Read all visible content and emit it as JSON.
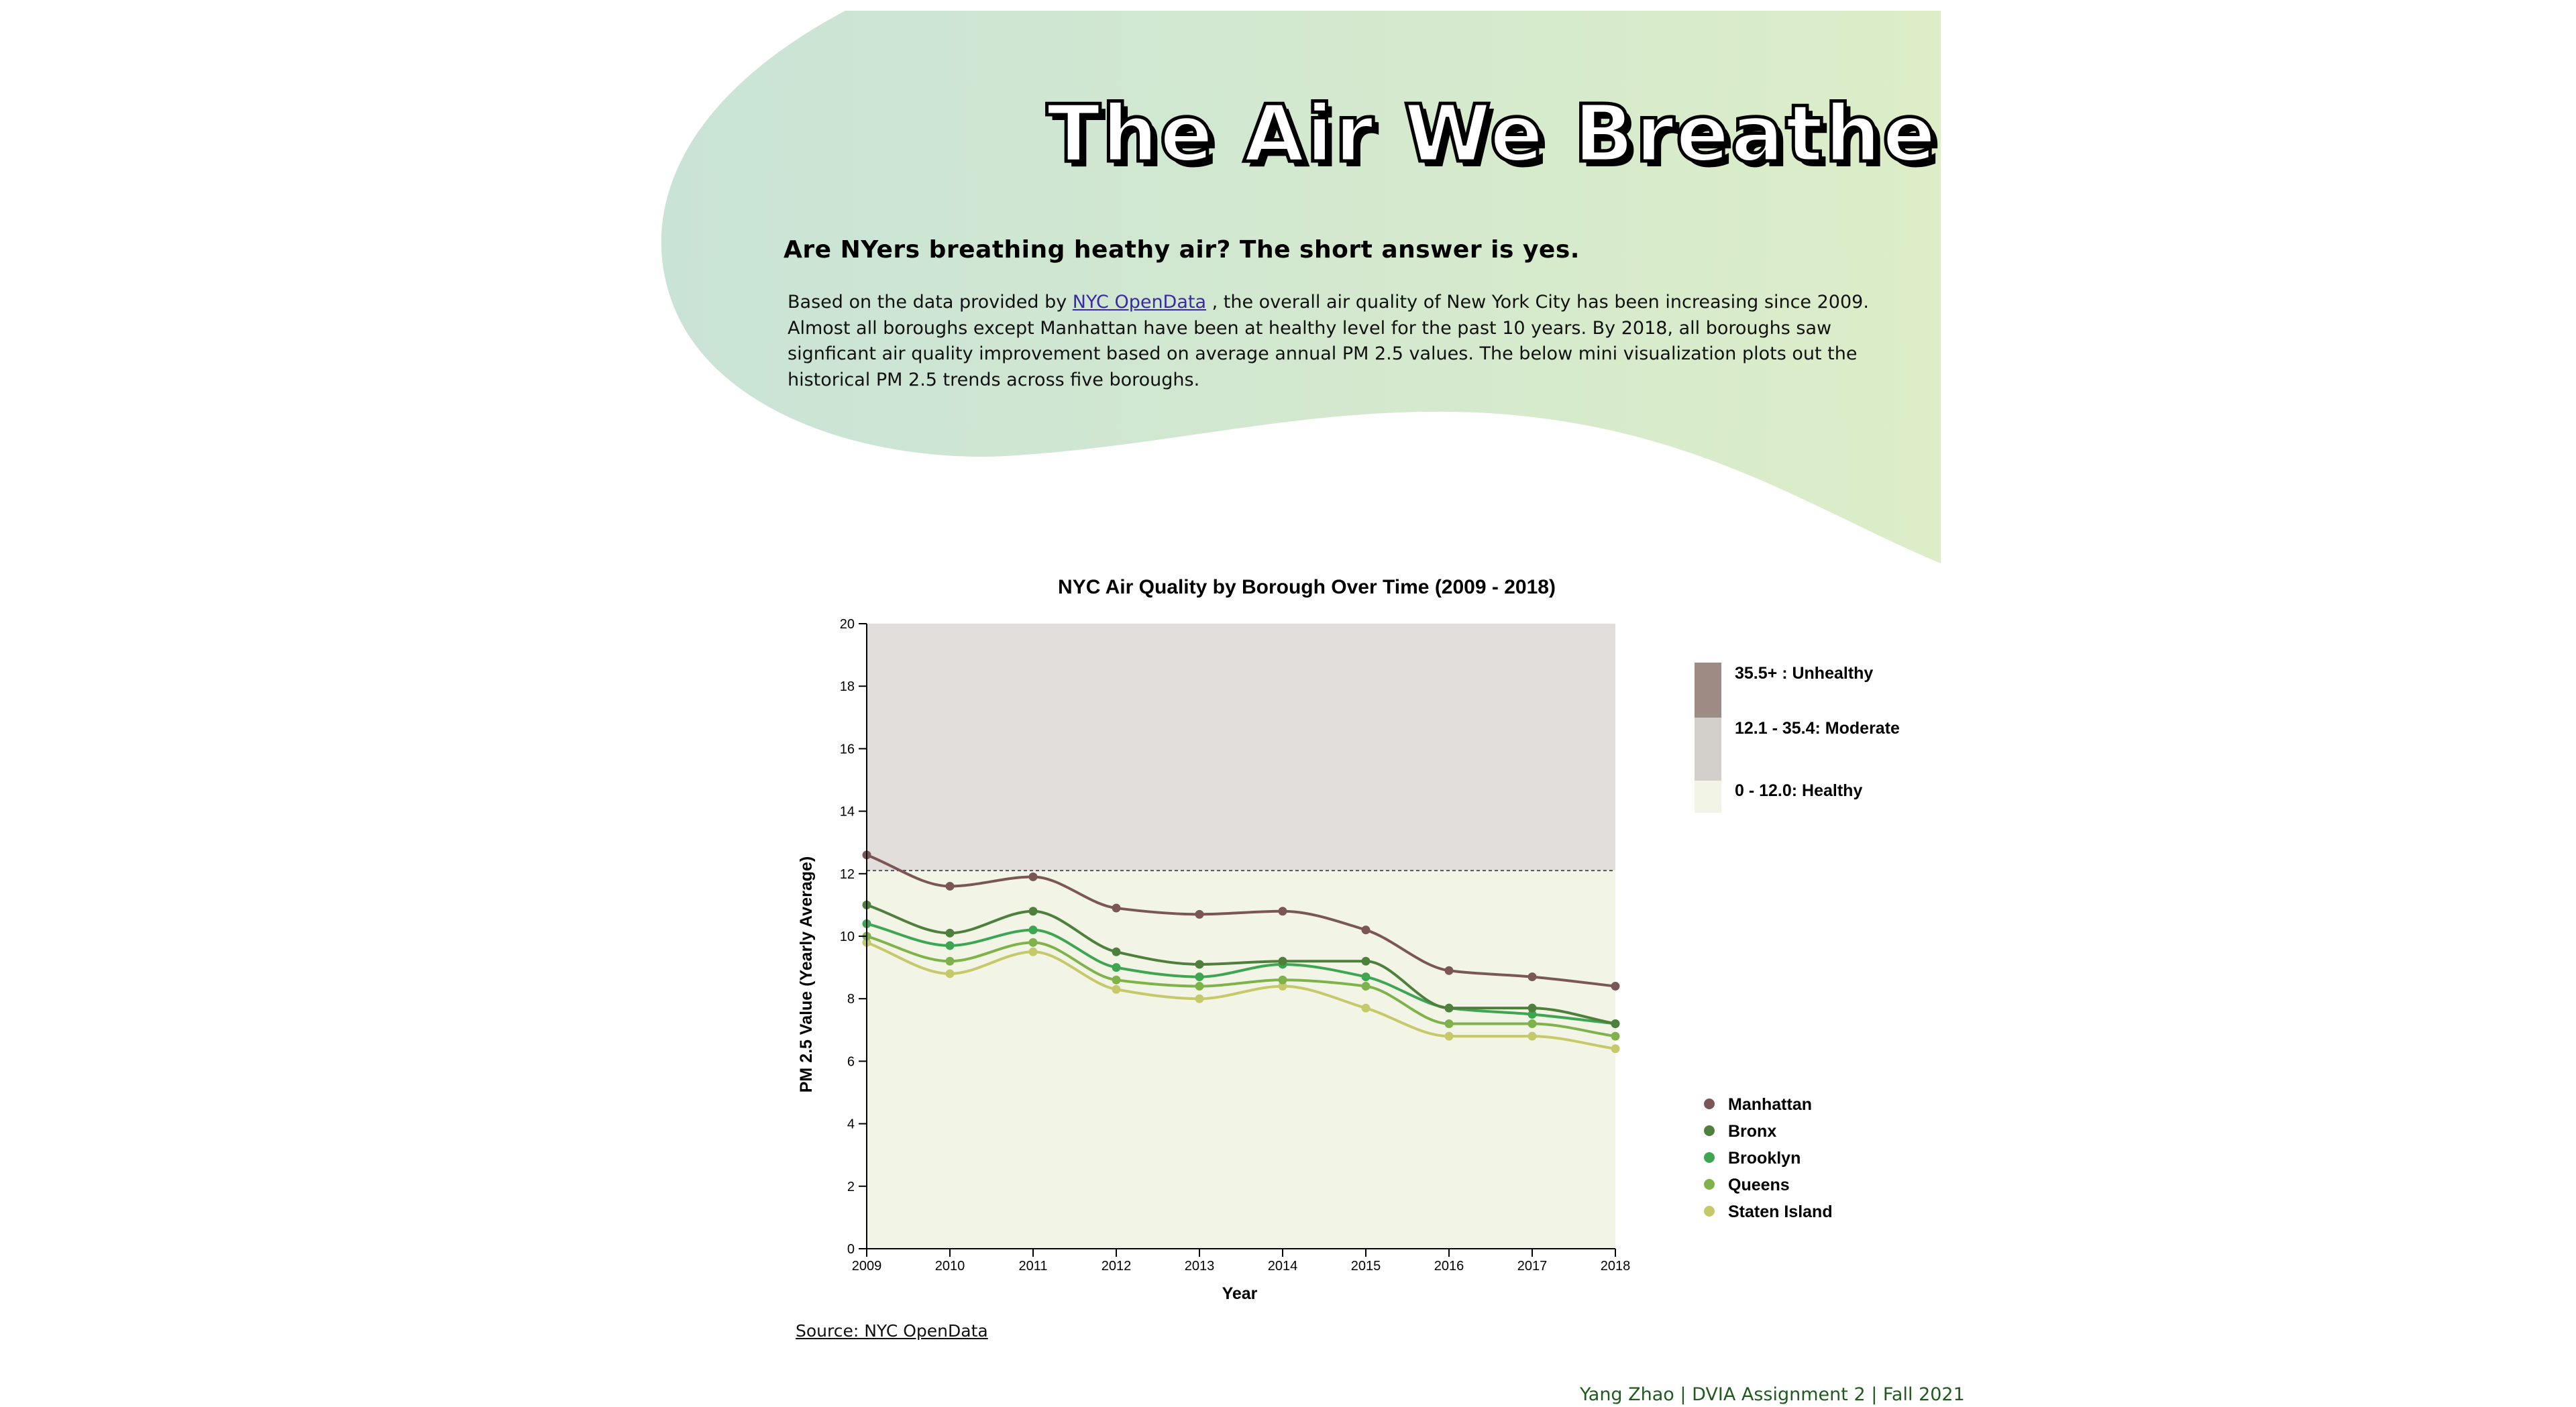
{
  "header": {
    "title": "The Air We Breathe",
    "subtitle": "Are NYers breathing heathy air? The short answer is yes.",
    "intro_before_link": "Based on the data provided by ",
    "intro_link": "NYC OpenData",
    "intro_after_link": " , the overall air quality of New York City has been increasing since 2009. Almost all boroughs except Manhattan have been at healthy level for the past 10 years. By 2018, all boroughs saw signficant air quality improvement based on average annual PM 2.5 values. The below mini visualization plots out the historical PM 2.5 trends across five boroughs."
  },
  "colors": {
    "gradient_start": "#c9e3d6",
    "gradient_end": "#dcedc8",
    "unhealthy": "#9e8b83",
    "moderate": "#e1dedb",
    "moderate_legend": "#d3d0cc",
    "healthy": "#f2f5e6",
    "manhattan": "#7a5656",
    "bronx": "#4f7f3d",
    "brooklyn": "#3ea653",
    "queens": "#7fb24a",
    "staten_island": "#c5c96a"
  },
  "chart_data": {
    "type": "line",
    "title": "NYC Air Quality by Borough Over Time (2009 - 2018)",
    "xlabel": "Year",
    "ylabel": "PM 2.5 Value (Yearly Average)",
    "ylim": [
      0,
      20
    ],
    "yticks": [
      "0",
      "2",
      "4",
      "6",
      "8",
      "10",
      "12",
      "14",
      "16",
      "18",
      "20"
    ],
    "x": [
      "2009",
      "2010",
      "2011",
      "2012",
      "2013",
      "2014",
      "2015",
      "2016",
      "2017",
      "2018"
    ],
    "threshold": 12.1,
    "bands": [
      {
        "label": "35.5+ : Unhealthy"
      },
      {
        "label": "12.1 - 35.4: Moderate"
      },
      {
        "label": "0 - 12.0: Healthy"
      }
    ],
    "series": [
      {
        "name": "Manhattan",
        "values": [
          12.6,
          11.6,
          11.9,
          10.9,
          10.7,
          10.8,
          10.2,
          8.9,
          8.7,
          8.4
        ]
      },
      {
        "name": "Bronx",
        "values": [
          11.0,
          10.1,
          10.8,
          9.5,
          9.1,
          9.2,
          9.2,
          7.7,
          7.7,
          7.2
        ]
      },
      {
        "name": "Brooklyn",
        "values": [
          10.4,
          9.7,
          10.2,
          9.0,
          8.7,
          9.1,
          8.7,
          7.7,
          7.5,
          7.2
        ]
      },
      {
        "name": "Queens",
        "values": [
          10.0,
          9.2,
          9.8,
          8.6,
          8.4,
          8.6,
          8.4,
          7.2,
          7.2,
          6.8
        ]
      },
      {
        "name": "Staten Island",
        "values": [
          9.8,
          8.8,
          9.5,
          8.3,
          8.0,
          8.4,
          7.7,
          6.8,
          6.8,
          6.4
        ]
      }
    ],
    "legend_placement": "right",
    "grid": false
  },
  "source_label": "Source: NYC OpenData",
  "footer": "Yang Zhao | DVIA Assignment 2 | Fall 2021"
}
